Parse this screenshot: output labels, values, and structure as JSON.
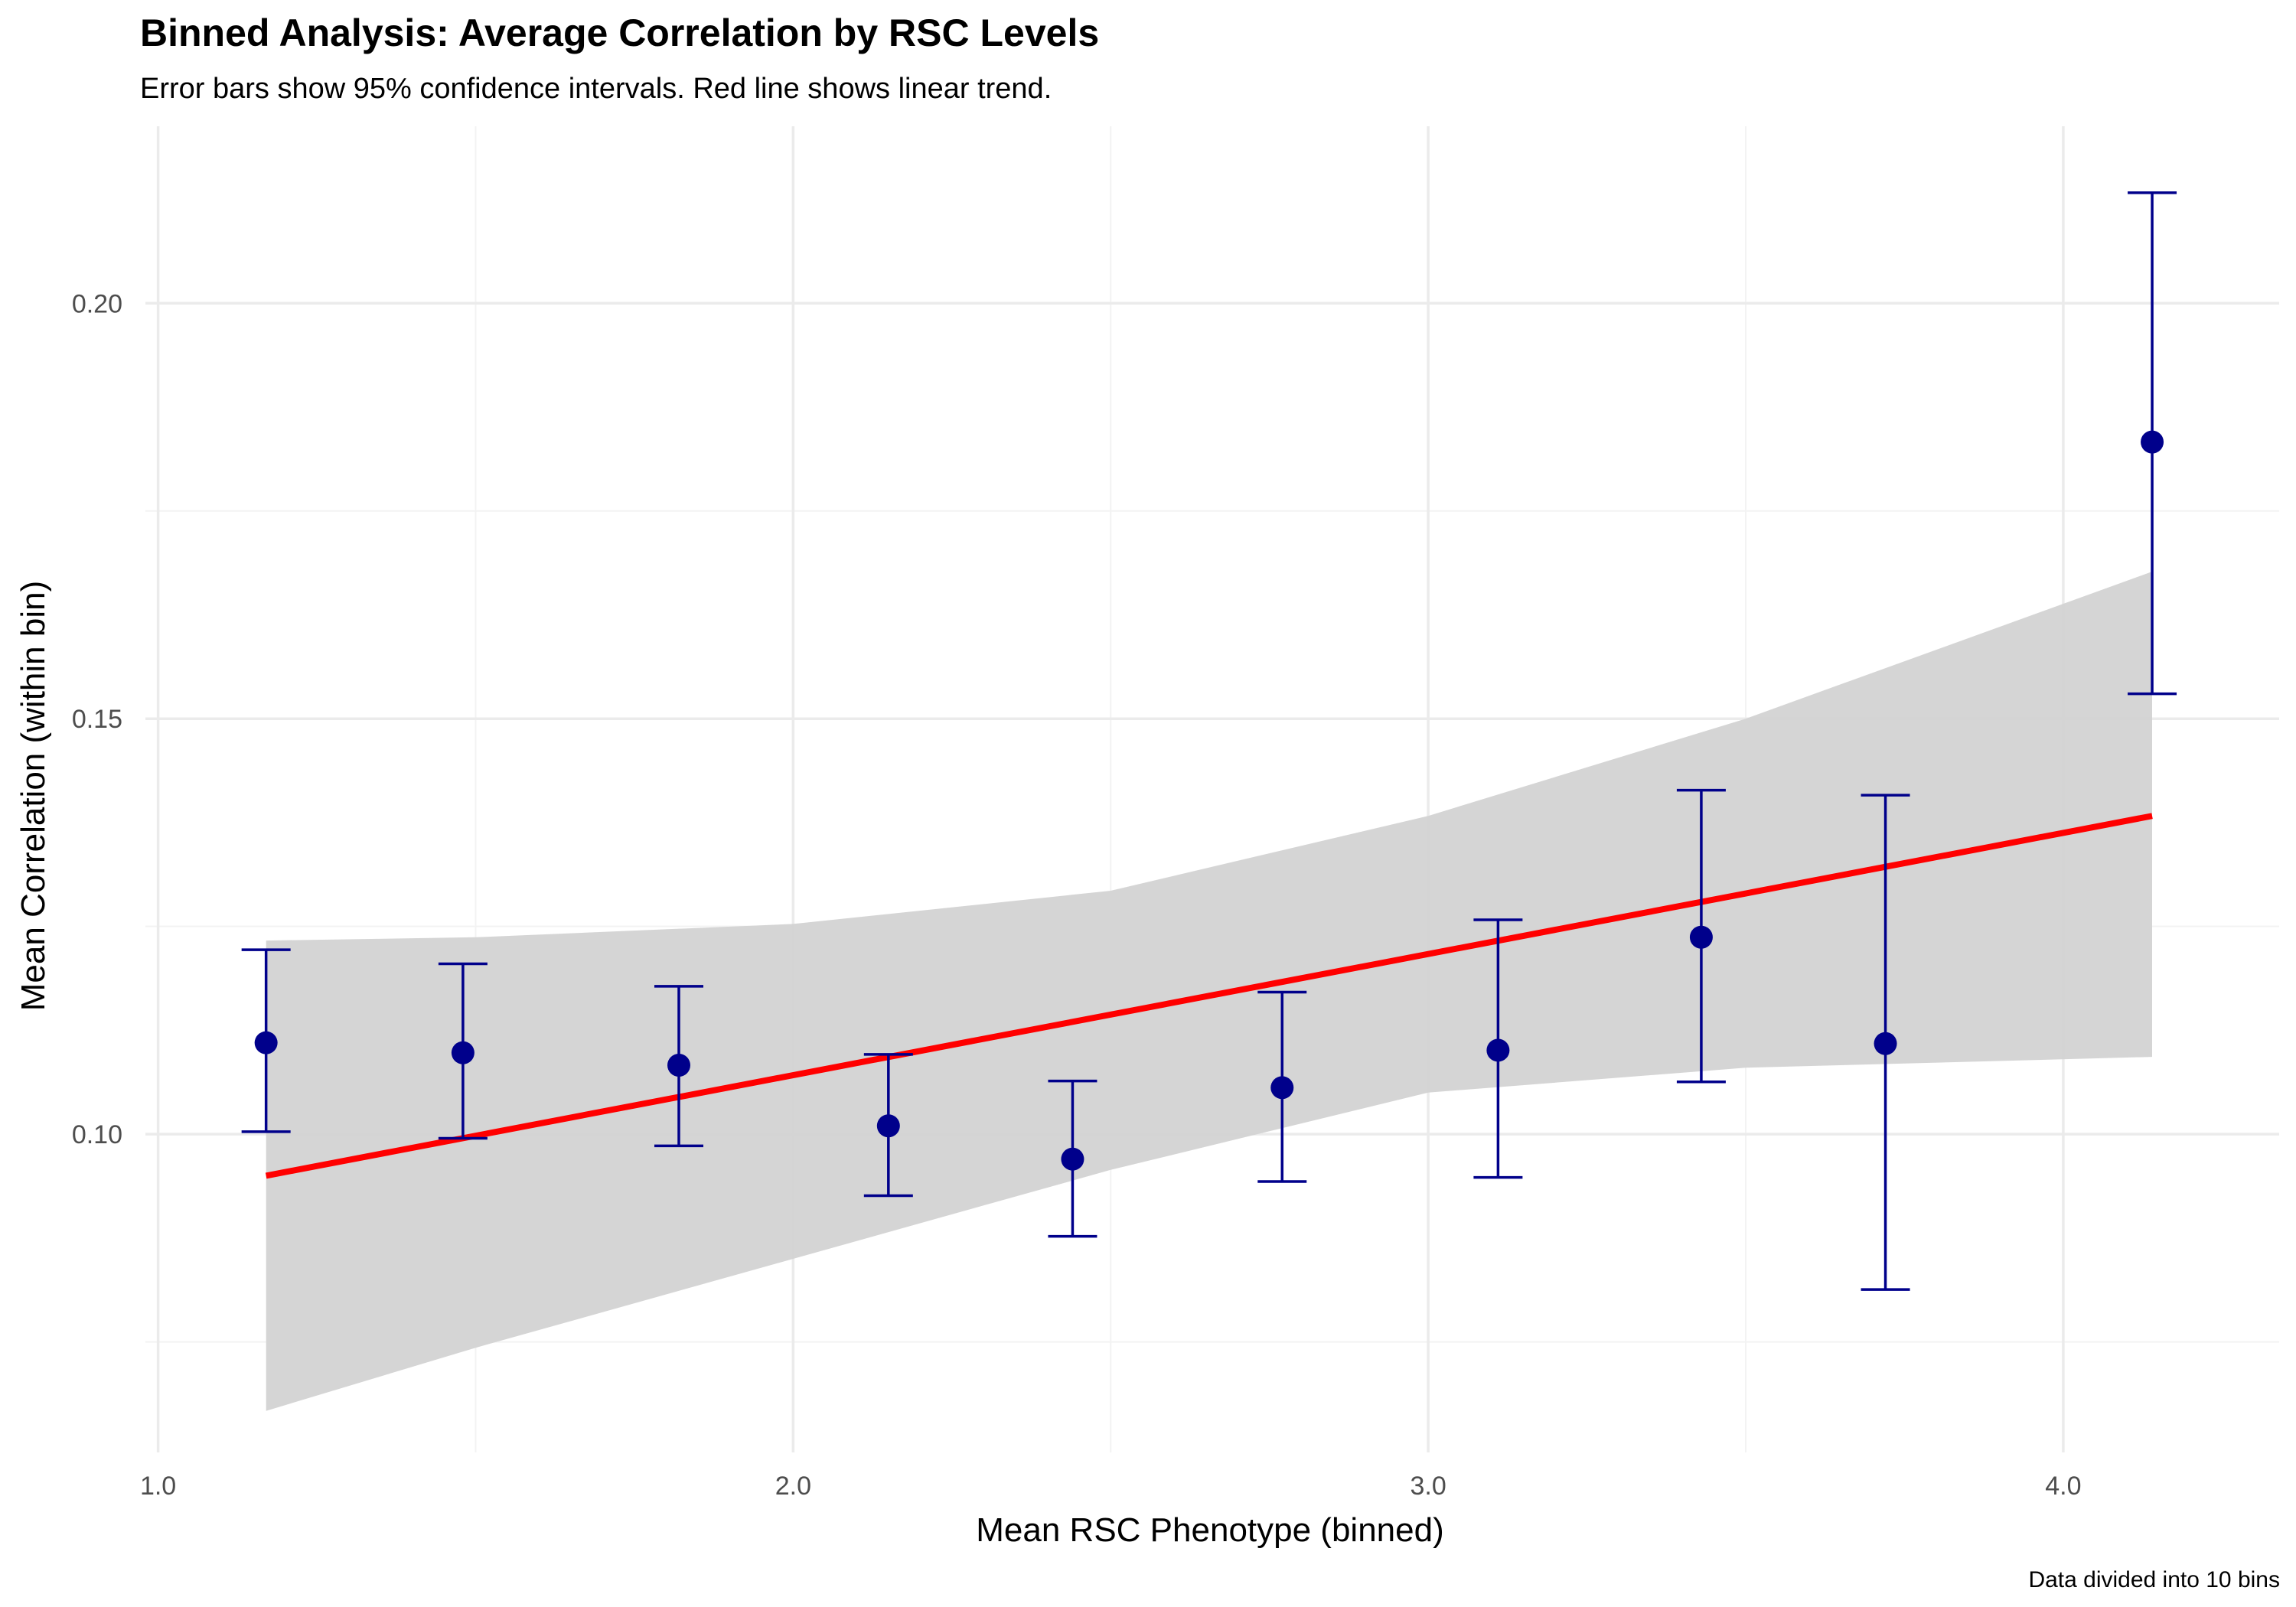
{
  "chart_data": {
    "type": "scatter",
    "title": "Binned Analysis: Average Correlation by RSC Levels",
    "subtitle": "Error bars show 95% confidence intervals. Red line shows linear trend.",
    "caption": "Data divided into 10 bins",
    "xlabel": "Mean RSC Phenotype (binned)",
    "ylabel": "Mean Correlation (within bin)",
    "xlim": [
      0.98,
      4.34
    ],
    "ylim": [
      0.0617,
      0.2213
    ],
    "x_ticks": [
      1.0,
      2.0,
      3.0,
      4.0
    ],
    "x_tick_labels": [
      "1.0",
      "2.0",
      "3.0",
      "4.0"
    ],
    "y_ticks": [
      0.1,
      0.15,
      0.2
    ],
    "y_tick_labels": [
      "0.10",
      "0.15",
      "0.20"
    ],
    "x_minor": [
      1.5,
      2.5,
      3.5
    ],
    "y_minor": [
      0.075,
      0.125,
      0.175
    ],
    "grid": true,
    "legend": "none",
    "colors": {
      "points": "#00008b",
      "error_bars": "#00008b",
      "trend": "#ff0000",
      "ci_band": "#d3d3d3"
    },
    "points": [
      {
        "x": 1.17,
        "y": 0.111,
        "lower": 0.1003,
        "upper": 0.1222
      },
      {
        "x": 1.48,
        "y": 0.1098,
        "lower": 0.0995,
        "upper": 0.1205
      },
      {
        "x": 1.82,
        "y": 0.1083,
        "lower": 0.0986,
        "upper": 0.1178
      },
      {
        "x": 2.15,
        "y": 0.101,
        "lower": 0.0926,
        "upper": 0.1096
      },
      {
        "x": 2.44,
        "y": 0.097,
        "lower": 0.0877,
        "upper": 0.1064
      },
      {
        "x": 2.77,
        "y": 0.1056,
        "lower": 0.0943,
        "upper": 0.1171
      },
      {
        "x": 3.11,
        "y": 0.1101,
        "lower": 0.0948,
        "upper": 0.1258
      },
      {
        "x": 3.43,
        "y": 0.1237,
        "lower": 0.1063,
        "upper": 0.1414
      },
      {
        "x": 3.72,
        "y": 0.1109,
        "lower": 0.0813,
        "upper": 0.1408
      },
      {
        "x": 4.14,
        "y": 0.1833,
        "lower": 0.153,
        "upper": 0.2133
      }
    ],
    "trend_line": {
      "x": [
        1.17,
        4.14
      ],
      "y": [
        0.095,
        0.1383
      ]
    },
    "confidence_band": {
      "x": [
        1.17,
        1.5,
        2.0,
        2.5,
        3.0,
        3.5,
        4.14
      ],
      "upper": [
        0.1233,
        0.1237,
        0.1253,
        0.1293,
        0.1383,
        0.15,
        0.1677
      ],
      "lower": [
        0.0667,
        0.0743,
        0.085,
        0.0957,
        0.105,
        0.108,
        0.1093
      ]
    }
  }
}
